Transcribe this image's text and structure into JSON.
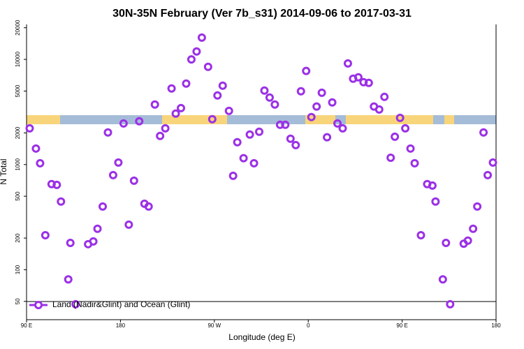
{
  "chart_data": {
    "type": "scatter",
    "title": "30N-35N February (Ver 7b_s31)   2014-09-06 to 2017-03-31",
    "x_label": "Longitude (deg E)",
    "y_label": "N Total",
    "log_y": true,
    "xlim": [
      90,
      540
    ],
    "ylim": [
      33.5,
      21500
    ],
    "xticks": [
      {
        "value": 90,
        "label": "90 E"
      },
      {
        "value": 180,
        "label": "180"
      },
      {
        "value": 270,
        "label": "90 W"
      },
      {
        "value": 360,
        "label": "0"
      },
      {
        "value": 450,
        "label": "90 E"
      },
      {
        "value": 540,
        "label": "180"
      }
    ],
    "yticks": [
      50,
      100,
      200,
      500,
      1000,
      2000,
      5000,
      10000,
      20000
    ],
    "legend": "bottom-left",
    "series": [
      {
        "name": "Land (Nadir&Glint) and Ocean (Glint)",
        "color": "#9b30e6",
        "x": [
          93,
          99,
          103,
          108,
          114,
          119,
          123,
          130,
          132,
          137,
          149,
          154,
          158,
          163,
          168,
          173,
          178,
          183,
          188,
          193,
          198,
          203,
          207,
          213,
          218,
          223,
          229,
          233,
          238,
          243,
          248,
          253,
          258,
          264,
          268,
          273,
          278,
          284,
          288,
          292,
          298,
          304,
          308,
          313,
          318,
          323,
          328,
          333,
          338,
          343,
          348,
          353,
          358,
          363,
          368,
          373,
          378,
          383,
          388,
          393,
          398,
          403,
          408,
          413,
          418,
          423,
          428,
          433,
          439,
          443,
          448,
          453,
          458,
          462,
          468,
          474,
          479,
          482,
          489,
          492,
          496,
          509,
          513,
          518,
          522,
          528,
          532,
          537
        ],
        "values": [
          2210,
          1420,
          1030,
          213,
          652,
          641,
          445,
          81,
          180,
          47,
          175,
          186,
          245,
          399,
          2020,
          794,
          1045,
          2460,
          268,
          703,
          2580,
          424,
          399,
          3720,
          1870,
          2210,
          5290,
          3050,
          3440,
          5890,
          10000,
          11900,
          16100,
          8500,
          2700,
          4540,
          5620,
          3240,
          782,
          1630,
          1150,
          1930,
          1030,
          2050,
          5050,
          4340,
          3720,
          2390,
          2390,
          1760,
          1530,
          4980,
          7760,
          2830,
          3560,
          4820,
          1820,
          3900,
          2460,
          2210,
          9160,
          6550,
          6760,
          6070,
          5980,
          3560,
          3340,
          4400,
          1160,
          1840,
          2780,
          2210,
          1420,
          1030,
          213,
          652,
          631,
          445,
          81,
          180,
          47,
          177,
          189,
          245,
          399,
          2020,
          794,
          1045
        ]
      }
    ]
  }
}
